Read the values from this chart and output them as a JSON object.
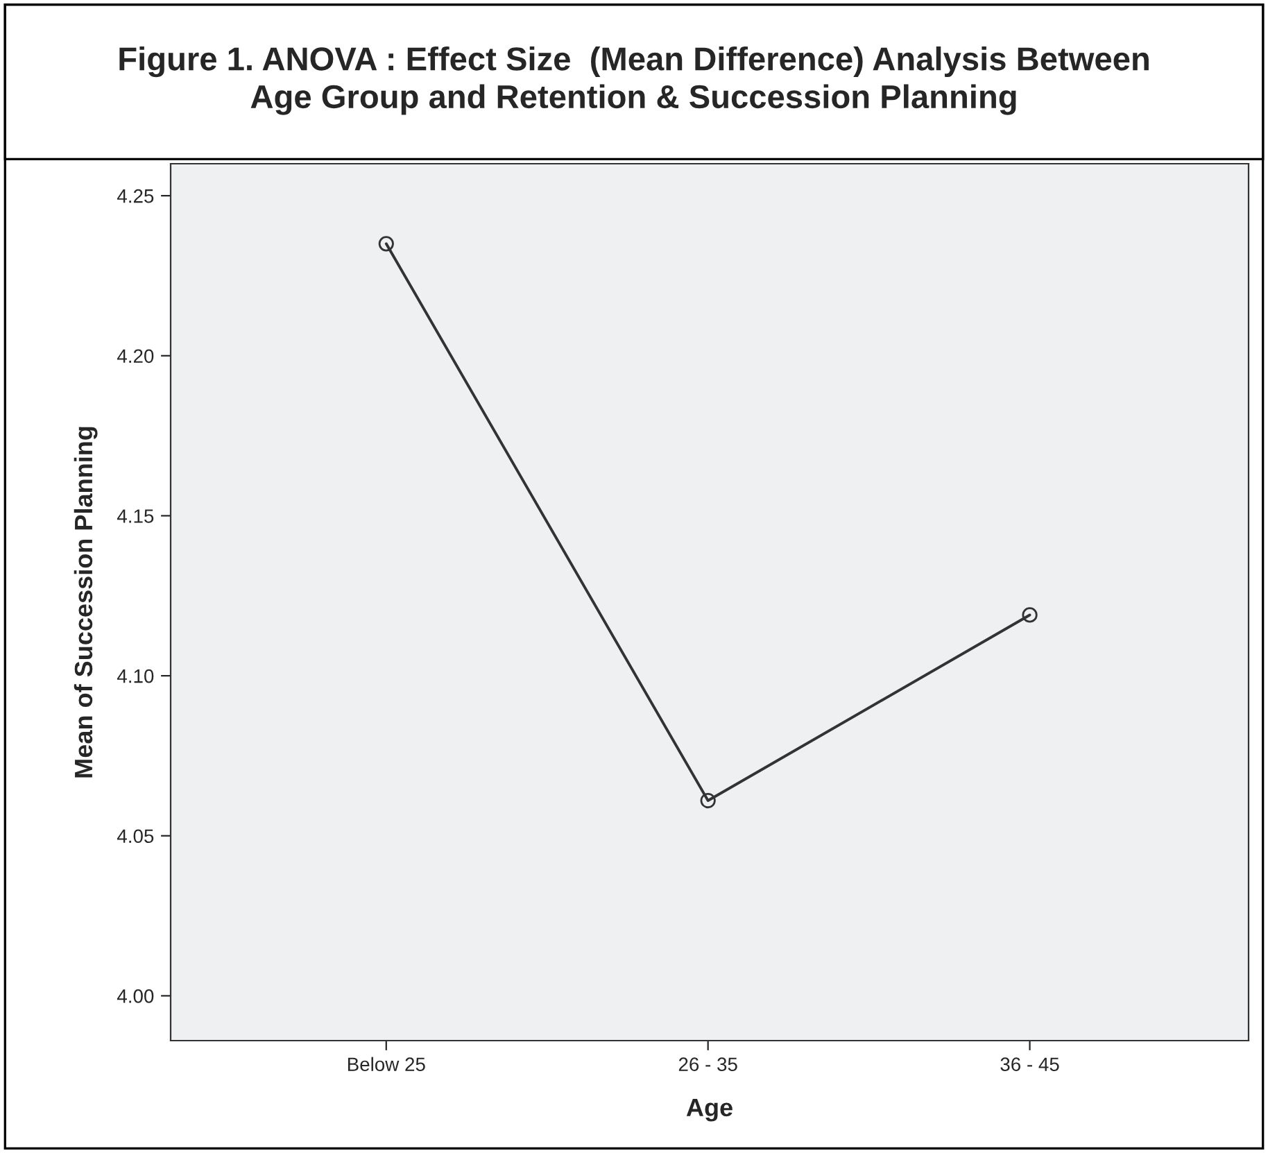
{
  "chart_data": {
    "type": "line",
    "title": "Figure 1. ANOVA : Effect Size  (Mean Difference) Analysis Between\nAge Group and Retention & Succession Planning",
    "xlabel": "Age",
    "ylabel": "Mean of Succession Planning",
    "categories": [
      "Below 25",
      "26 - 35",
      "36 - 45"
    ],
    "series": [
      {
        "color": "#333333",
        "values": [
          4.235,
          4.061,
          4.119
        ]
      }
    ],
    "ylim": [
      3.986,
      4.26
    ],
    "yticks": [
      {
        "value": 4.0,
        "label": "4.00"
      },
      {
        "value": 4.05,
        "label": "4.05"
      },
      {
        "value": 4.1,
        "label": "4.10"
      },
      {
        "value": 4.15,
        "label": "4.15"
      },
      {
        "value": 4.2,
        "label": "4.20"
      },
      {
        "value": 4.25,
        "label": "4.25"
      }
    ],
    "marker": "circle",
    "line_style": "solid",
    "grid": false,
    "legend": false
  }
}
